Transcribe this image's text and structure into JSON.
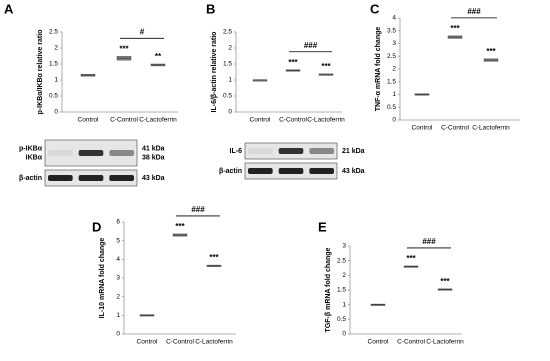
{
  "chart_data": [
    {
      "type": "errorbar",
      "panel": "A",
      "y_label": "p-IKBα/IKBα relative ratio",
      "categories": [
        "Control",
        "C-Control",
        "C-Lactoferrin"
      ],
      "values": [
        1.15,
        1.68,
        1.47
      ],
      "errors": [
        0.03,
        0.06,
        0.03
      ],
      "star_labels": [
        null,
        "***",
        "**"
      ],
      "comparison_label": "#",
      "color": "#888888",
      "ylim": [
        0,
        2.5
      ],
      "yticks": [
        0,
        0.5,
        1,
        1.5,
        2,
        2.5
      ],
      "blot": [
        {
          "labels": [
            "p-IKBα",
            "IKBα"
          ],
          "sizes": [
            "41 kDa",
            "38 kDa"
          ]
        },
        {
          "labels": [
            "β-actin"
          ],
          "sizes": [
            "43 kDa"
          ]
        }
      ]
    },
    {
      "type": "errorbar",
      "panel": "B",
      "y_label": "IL-6/β-actin relative ratio",
      "categories": [
        "Control",
        "C-Control",
        "C-Lactoferrin"
      ],
      "values": [
        1.0,
        1.3,
        1.18
      ],
      "errors": [
        0.01,
        0.02,
        0.01
      ],
      "star_labels": [
        null,
        "***",
        "***"
      ],
      "comparison_label": "###",
      "color": "#888888",
      "ylim": [
        0,
        2.5
      ],
      "yticks": [
        0,
        0.5,
        1,
        1.5,
        2,
        2.5
      ],
      "blot": [
        {
          "labels": [
            "IL-6"
          ],
          "sizes": [
            "21 kDa"
          ]
        },
        {
          "labels": [
            "β-actin"
          ],
          "sizes": [
            "43 kDa"
          ]
        }
      ]
    },
    {
      "type": "errorbar",
      "panel": "C",
      "y_label": "TNF-α mRNA fold change",
      "categories": [
        "Control",
        "C-Control",
        "C-Lactoferrin"
      ],
      "values": [
        1.0,
        3.25,
        2.35
      ],
      "errors": [
        0.03,
        0.05,
        0.05
      ],
      "star_labels": [
        null,
        "***",
        "***"
      ],
      "comparison_label": "###",
      "color": "#888888",
      "ylim": [
        0,
        4
      ],
      "yticks": [
        0,
        0.5,
        1,
        1.5,
        2,
        2.5,
        3,
        3.5,
        4
      ]
    },
    {
      "type": "errorbar",
      "panel": "D",
      "y_label": "IL-10 mRNA fold change",
      "categories": [
        "Control",
        "C-Control",
        "C-Lactoferrin"
      ],
      "values": [
        1.0,
        5.3,
        3.65
      ],
      "errors": [
        0.04,
        0.06,
        0.04
      ],
      "star_labels": [
        null,
        "***",
        "***"
      ],
      "comparison_label": "###",
      "color": "#888888",
      "ylim": [
        0,
        6
      ],
      "yticks": [
        0,
        1,
        2,
        3,
        4,
        5,
        6
      ]
    },
    {
      "type": "errorbar",
      "panel": "E",
      "y_label": "TGF-β mRNA fold change",
      "categories": [
        "Control",
        "C-Control",
        "C-Lactoferrin"
      ],
      "values": [
        1.0,
        2.3,
        1.52
      ],
      "errors": [
        0.02,
        0.02,
        0.02
      ],
      "star_labels": [
        null,
        "***",
        "***"
      ],
      "comparison_label": "###",
      "color": "#888888",
      "ylim": [
        0,
        3
      ],
      "yticks": [
        0,
        0.5,
        1,
        1.5,
        2,
        2.5,
        3
      ]
    }
  ]
}
